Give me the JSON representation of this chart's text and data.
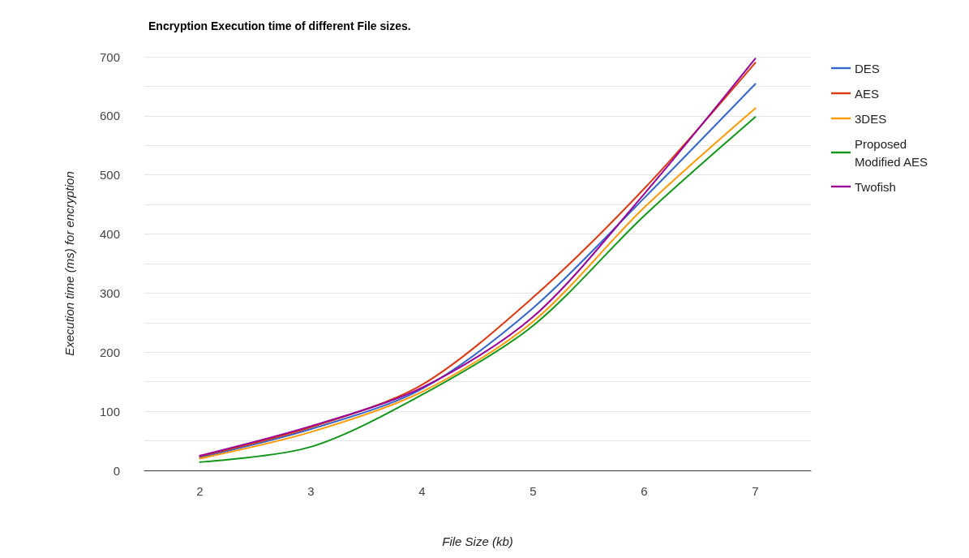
{
  "chart_data": {
    "type": "line",
    "title": "Encryption Execution time of different File sizes.",
    "xlabel": "File Size (kb)",
    "ylabel": "Execution time (ms) for encryption",
    "x": [
      2,
      3,
      4,
      5,
      6,
      7
    ],
    "series": [
      {
        "name": "DES",
        "color": "#3366cc",
        "values": [
          22,
          70,
          138,
          275,
          461,
          654
        ]
      },
      {
        "name": "AES",
        "color": "#dc3912",
        "values": [
          24,
          73,
          145,
          293,
          477,
          690
        ]
      },
      {
        "name": "3DES",
        "color": "#ff9900",
        "values": [
          20,
          65,
          133,
          252,
          445,
          613
        ]
      },
      {
        "name": "Proposed Modified AES",
        "color": "#109618",
        "values": [
          14,
          40,
          128,
          245,
          431,
          598
        ]
      },
      {
        "name": "Twofish",
        "color": "#990099",
        "values": [
          25,
          75,
          140,
          260,
          468,
          697
        ]
      }
    ],
    "xlim": [
      1.5,
      7.5
    ],
    "xticks": [
      2,
      3,
      4,
      5,
      6,
      7
    ],
    "ylim": [
      0,
      700
    ],
    "yticks": [
      0,
      {
        "value": 50,
        "label": null
      },
      100,
      {
        "value": 150,
        "label": null
      },
      200,
      {
        "value": 250,
        "label": null
      },
      300,
      {
        "value": 350,
        "label": null
      },
      400,
      {
        "value": 450,
        "label": null
      },
      500,
      {
        "value": 550,
        "label": null
      },
      600,
      {
        "value": 650,
        "label": null
      },
      700
    ],
    "grid": "y",
    "legend": "right",
    "marker": "none",
    "line_style": "solid"
  }
}
